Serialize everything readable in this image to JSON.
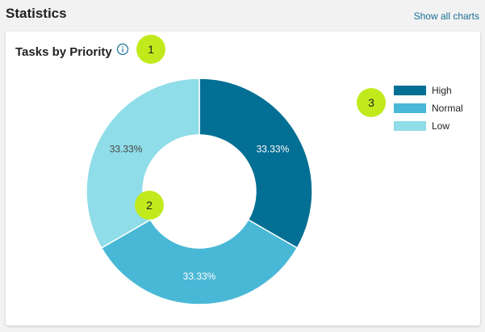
{
  "header": {
    "title": "Statistics",
    "show_all_label": "Show all charts"
  },
  "card": {
    "title": "Tasks by Priority"
  },
  "badges": [
    {
      "label": "1"
    },
    {
      "label": "2"
    },
    {
      "label": "3"
    }
  ],
  "colors": {
    "high": "#036f94",
    "normal": "#48b8d6",
    "low": "#8fdde8",
    "badge": "#c1ea1c",
    "link": "#1a6e96"
  },
  "chart_data": {
    "type": "pie",
    "title": "Tasks by Priority",
    "donut": true,
    "legend_position": "right",
    "categories": [
      "High",
      "Normal",
      "Low"
    ],
    "values": [
      33.33,
      33.33,
      33.33
    ],
    "labels": [
      "33.33%",
      "33.33%",
      "33.33%"
    ],
    "colors": [
      "#036f94",
      "#48b8d6",
      "#8fdde8"
    ],
    "label_colors": [
      "#ffffff",
      "#ffffff",
      "#444444"
    ]
  }
}
